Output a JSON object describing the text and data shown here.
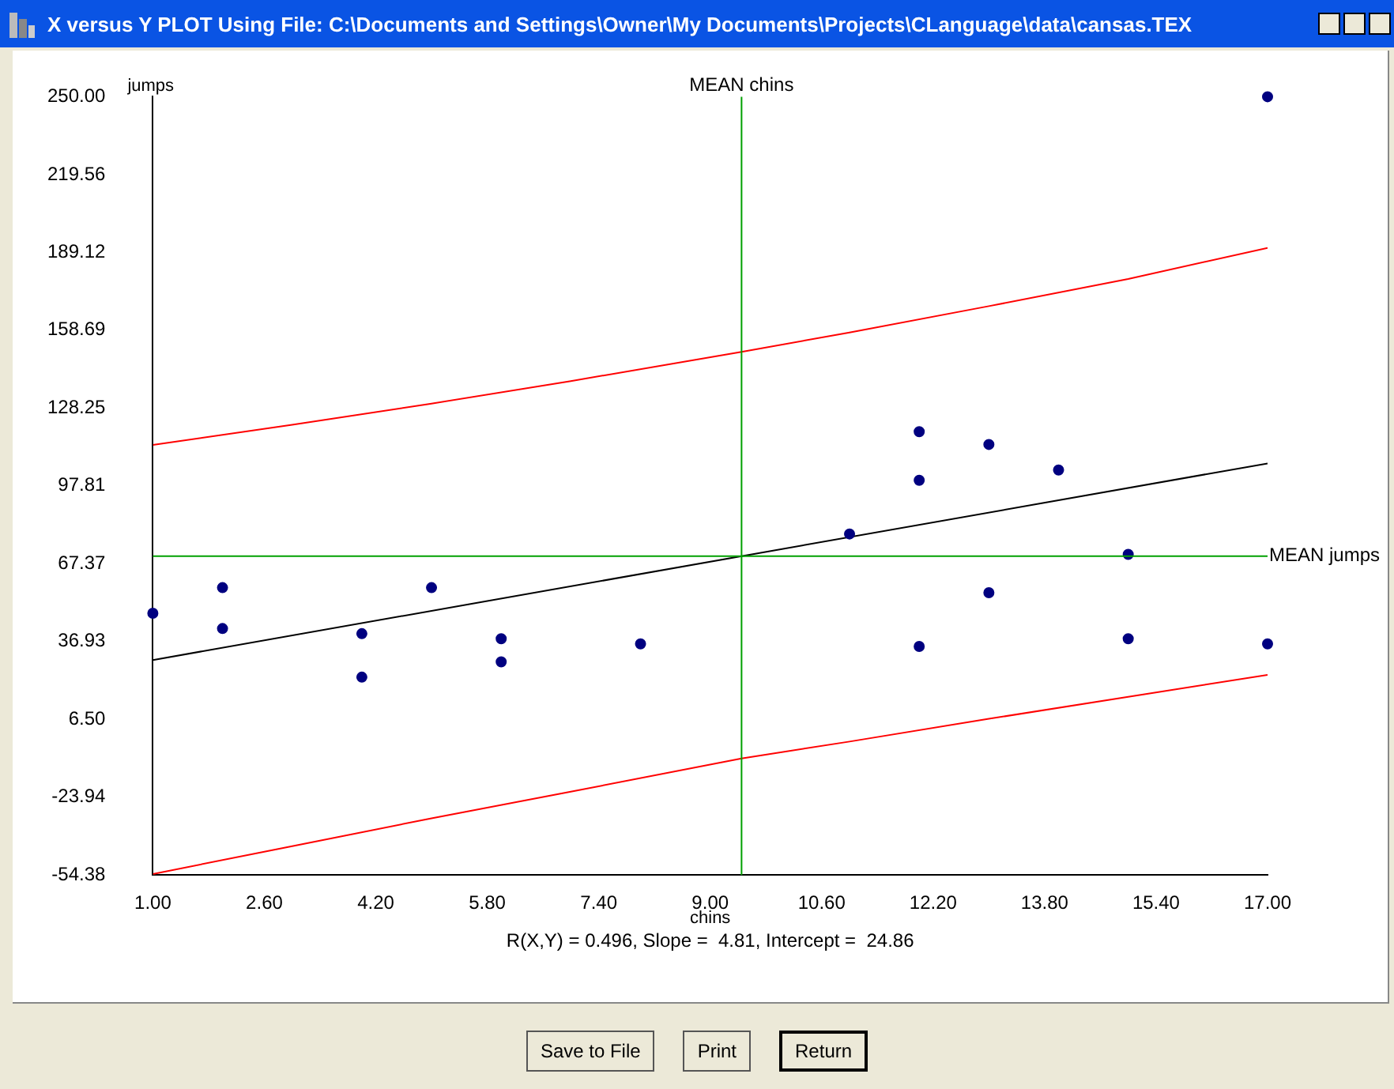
{
  "chart_data": {
    "type": "scatter",
    "title": "X versus Y PLOT Using File: C:\\Documents and Settings\\Owner\\My Documents\\Projects\\CLanguage\\data\\cansas.TEX",
    "xlabel": "chins",
    "ylabel": "jumps",
    "series": [
      {
        "color": "#000080",
        "x": [
          1,
          2,
          2,
          4,
          4,
          5,
          6,
          6,
          8,
          11,
          12,
          12,
          12,
          13,
          13,
          14,
          15,
          15,
          17,
          17
        ],
        "values": [
          48,
          58,
          42,
          40,
          23,
          58,
          38,
          29,
          36,
          79,
          119,
          100,
          35,
          114,
          56,
          104,
          71,
          38,
          250,
          36
        ]
      },
      {
        "type": "line",
        "color": "#000000",
        "x": [
          1,
          17
        ],
        "values": [
          29.7,
          106.6
        ],
        "marker": "none"
      },
      {
        "type": "line",
        "color": "#ff0000",
        "x": [
          1,
          3,
          5,
          7,
          9.45,
          11,
          13,
          15,
          17
        ],
        "values": [
          113.8,
          121.7,
          130,
          138.8,
          150.2,
          157.8,
          168.1,
          178.7,
          190.9
        ],
        "marker": "none"
      },
      {
        "type": "line",
        "color": "#ff0000",
        "x": [
          1,
          3,
          5,
          7,
          9.45,
          11,
          13,
          15,
          17
        ],
        "values": [
          -54,
          -43.1,
          -32.2,
          -21.8,
          -8.8,
          -2.2,
          6.7,
          15.3,
          23.9
        ],
        "marker": "none"
      }
    ],
    "xlim": [
      1,
      17
    ],
    "xticks": [
      {
        "value": 1,
        "label": "1.00"
      },
      {
        "value": 2.6,
        "label": "2.60"
      },
      {
        "value": 4.2,
        "label": "4.20"
      },
      {
        "value": 5.8,
        "label": "5.80"
      },
      {
        "value": 7.4,
        "label": "7.40"
      },
      {
        "value": 9,
        "label": "9.00"
      },
      {
        "value": 10.6,
        "label": "10.60"
      },
      {
        "value": 12.2,
        "label": "12.20"
      },
      {
        "value": 13.8,
        "label": "13.80"
      },
      {
        "value": 15.4,
        "label": "15.40"
      },
      {
        "value": 17,
        "label": "17.00"
      }
    ],
    "ylim": [
      -54.38,
      250
    ],
    "yticks": [
      -54.38,
      -23.94,
      {
        "value": 6.5,
        "label": "6.50"
      },
      36.93,
      67.37,
      97.81,
      128.25,
      158.69,
      189.12,
      219.56,
      {
        "value": 250,
        "label": "250.00"
      }
    ],
    "ref_lines": [
      {
        "axis": "x",
        "value": 9.45,
        "label": "MEAN chins",
        "color": "#00a000"
      },
      {
        "axis": "y",
        "value": 70.3,
        "label": "MEAN jumps",
        "color": "#00a000"
      }
    ],
    "annotations": [
      "R(X,Y) = 0.496, Slope =  4.81, Intercept =  24.86",
      "Save to File",
      "Print",
      "Return"
    ],
    "grid": false,
    "legend": false,
    "marker": "circle",
    "line_style": "solid"
  }
}
